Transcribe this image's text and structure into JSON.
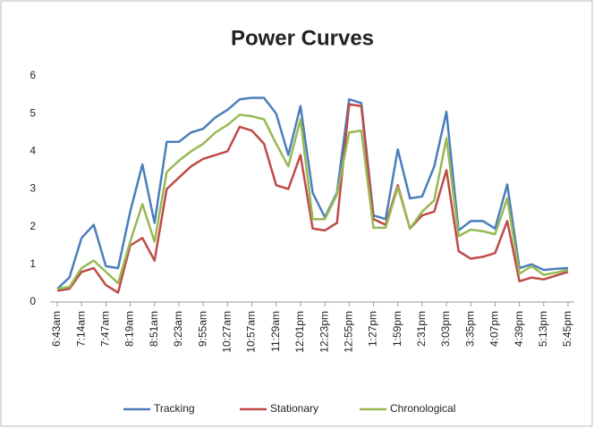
{
  "chart_data": {
    "type": "line",
    "title": "Power Curves",
    "categories": [
      "6:43am",
      null,
      "7:14am",
      null,
      "7:47am",
      null,
      "8:19am",
      null,
      "8:51am",
      null,
      "9:23am",
      null,
      "9:55am",
      null,
      "10:27am",
      null,
      "10:57am",
      null,
      "11:29am",
      null,
      "12:01pm",
      null,
      "12:23pm",
      null,
      "12:55pm",
      null,
      "1:27pm",
      null,
      "1:59pm",
      null,
      "2:31pm",
      null,
      "3:03pm",
      null,
      "3:35pm",
      null,
      "4:07pm",
      null,
      "4:39pm",
      null,
      "5:13pm",
      null,
      "5:45pm"
    ],
    "series": [
      {
        "name": "Tracking",
        "color": "#4a7ebb",
        "values": [
          0.35,
          0.65,
          1.7,
          2.05,
          0.95,
          0.9,
          2.4,
          3.65,
          2.1,
          4.25,
          4.25,
          4.5,
          4.6,
          4.9,
          5.1,
          5.38,
          5.42,
          5.42,
          5.0,
          3.9,
          5.2,
          2.9,
          2.25,
          2.9,
          5.38,
          5.28,
          2.3,
          2.2,
          4.05,
          2.75,
          2.8,
          3.6,
          5.05,
          1.9,
          2.15,
          2.15,
          1.95,
          3.12,
          0.9,
          1.0,
          0.85,
          0.88,
          0.9
        ]
      },
      {
        "name": "Stationary",
        "color": "#be4b48",
        "values": [
          0.3,
          0.35,
          0.8,
          0.9,
          0.45,
          0.25,
          1.5,
          1.7,
          1.1,
          3.0,
          3.3,
          3.6,
          3.8,
          3.9,
          4.0,
          4.65,
          4.55,
          4.2,
          3.1,
          3.0,
          3.9,
          1.95,
          1.9,
          2.1,
          5.25,
          5.2,
          2.2,
          2.05,
          3.1,
          1.95,
          2.3,
          2.4,
          3.5,
          1.35,
          1.15,
          1.2,
          1.3,
          2.15,
          0.55,
          0.65,
          0.6,
          0.7,
          0.8
        ]
      },
      {
        "name": "Chronological",
        "color": "#98b954",
        "values": [
          0.35,
          0.4,
          0.9,
          1.1,
          0.8,
          0.5,
          1.6,
          2.6,
          1.6,
          3.45,
          3.75,
          4.0,
          4.2,
          4.5,
          4.7,
          4.97,
          4.93,
          4.85,
          4.2,
          3.6,
          4.85,
          2.2,
          2.2,
          2.85,
          4.5,
          4.55,
          1.97,
          1.97,
          3.05,
          1.95,
          2.4,
          2.7,
          4.35,
          1.75,
          1.92,
          1.88,
          1.8,
          2.75,
          0.75,
          0.95,
          0.72,
          0.78,
          0.85
        ]
      }
    ],
    "ylim": [
      0,
      6
    ],
    "yticks": [
      0,
      1,
      2,
      3,
      4,
      5,
      6
    ],
    "grid": false,
    "legend": "bottom"
  }
}
